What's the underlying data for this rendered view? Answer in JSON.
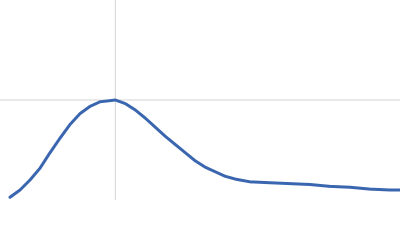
{
  "chart_data": {
    "type": "line",
    "x": [
      0.15,
      0.3,
      0.45,
      0.6,
      0.75,
      0.9,
      1.05,
      1.2,
      1.35,
      1.5,
      1.73,
      1.88,
      2.03,
      2.18,
      2.33,
      2.48,
      2.63,
      2.78,
      2.93,
      3.08,
      3.23,
      3.38,
      3.53,
      3.75,
      4.05,
      4.35,
      4.65,
      4.95,
      5.25,
      5.55,
      5.85,
      6.0
    ],
    "series": [
      {
        "color": "#3a66b0",
        "values": [
          0.03,
          0.11,
          0.22,
          0.35,
          0.52,
          0.68,
          0.83,
          0.95,
          1.03,
          1.08,
          1.1,
          1.06,
          0.99,
          0.9,
          0.8,
          0.7,
          0.61,
          0.52,
          0.43,
          0.36,
          0.31,
          0.26,
          0.23,
          0.2,
          0.19,
          0.18,
          0.17,
          0.15,
          0.14,
          0.12,
          0.11,
          0.11
        ]
      }
    ],
    "xlim": [
      0,
      6
    ],
    "ylim": [
      0,
      2.2
    ],
    "reference_lines": {
      "x": 1.73,
      "y": 1.1,
      "color": "#d3d3d3"
    }
  }
}
